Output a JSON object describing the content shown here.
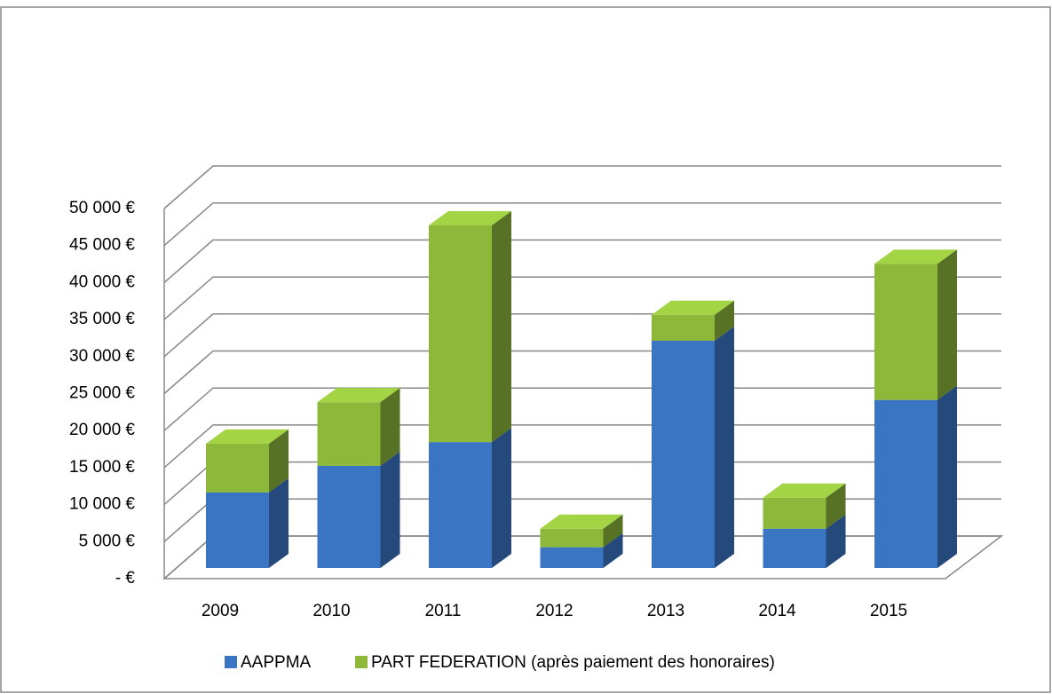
{
  "chart_data": {
    "type": "bar3d_stacked",
    "categories": [
      "2009",
      "2010",
      "2011",
      "2012",
      "2013",
      "2014",
      "2015"
    ],
    "series": [
      {
        "name": "AAPPMA",
        "color": "#3a75c4",
        "values": [
          10200,
          13800,
          17000,
          2800,
          30700,
          5300,
          22700
        ]
      },
      {
        "name": "PART FEDERATION (après paiement des honoraires)",
        "color": "#8db83a",
        "values": [
          6600,
          8600,
          29300,
          2500,
          3500,
          4200,
          18400
        ]
      }
    ],
    "ylim": [
      0,
      50000
    ],
    "yticks": [
      {
        "value": 0,
        "label": "-  €"
      },
      {
        "value": 5000,
        "label": "5 000 €"
      },
      {
        "value": 10000,
        "label": "10 000 €"
      },
      {
        "value": 15000,
        "label": "15 000 €"
      },
      {
        "value": 20000,
        "label": "20 000 €"
      },
      {
        "value": 25000,
        "label": "25 000 €"
      },
      {
        "value": 30000,
        "label": "30 000 €"
      },
      {
        "value": 35000,
        "label": "35 000 €"
      },
      {
        "value": 40000,
        "label": "40 000 €"
      },
      {
        "value": 45000,
        "label": "45 000 €"
      },
      {
        "value": 50000,
        "label": "50 000 €"
      }
    ],
    "grid": true,
    "legend": "bottom"
  }
}
